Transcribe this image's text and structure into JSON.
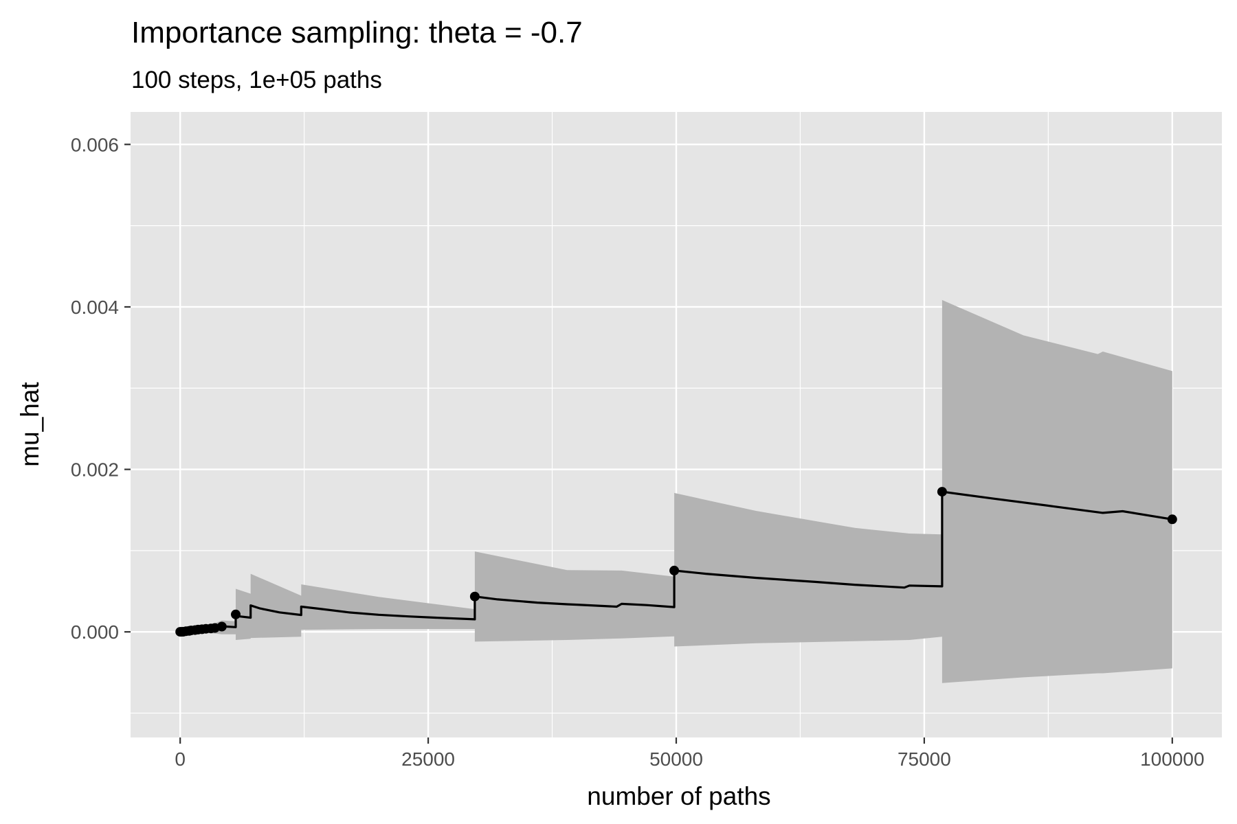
{
  "chart_data": {
    "type": "line",
    "title": "Importance sampling: theta =  -0.7",
    "subtitle": "100 steps, 1e+05 paths",
    "xlabel": "number of paths",
    "ylabel": "mu_hat",
    "xlim": [
      -5000,
      105000
    ],
    "ylim": [
      -0.0013,
      0.0064
    ],
    "x_ticks": [
      0,
      25000,
      50000,
      75000,
      100000
    ],
    "x_tick_labels": [
      "0",
      "25000",
      "50000",
      "75000",
      "100000"
    ],
    "y_ticks": [
      0,
      0.002,
      0.004,
      0.006
    ],
    "y_tick_labels": [
      "0.000",
      "0.002",
      "0.004",
      "0.006"
    ],
    "x_minor": [
      12500,
      37500,
      62500,
      87500
    ],
    "y_minor": [
      -0.001,
      0.001,
      0.003,
      0.005
    ],
    "grid": true,
    "band_color": "#b3b3b3",
    "line_color": "#000000",
    "panel_color": "#e5e5e5",
    "jumps": [
      0,
      600,
      1100,
      1800,
      2600,
      3500,
      4200,
      5600,
      7100,
      12200,
      29700,
      49800,
      76800
    ],
    "series": [
      {
        "x": [
          0,
          300,
          599,
          600,
          1099,
          1100,
          1799,
          1800,
          2599,
          2600,
          3499,
          3500,
          4199,
          4200,
          5599,
          5600,
          6000,
          7099,
          7100,
          8000,
          10000,
          12199,
          12200,
          14000,
          17000,
          20000,
          23000,
          26000,
          29699,
          29700,
          32000,
          36000,
          39000,
          40000,
          44000,
          44500,
          47000,
          49799,
          49800,
          53000,
          58000,
          64000,
          68000,
          73000,
          73500,
          76799,
          76800,
          82000,
          88000,
          93000,
          95000,
          100000
        ],
        "y": [
          1.5e-06,
          1.3e-06,
          1.2e-06,
          1.05e-05,
          9.5e-06,
          2.2e-05,
          2e-05,
          3.5e-05,
          3.1e-05,
          4.5e-05,
          4e-05,
          5.8e-05,
          5.2e-05,
          6.8e-05,
          5.8e-05,
          0.000212,
          0.00019,
          0.000175,
          0.000325,
          0.00029,
          0.00024,
          0.000208,
          0.00031,
          0.000285,
          0.00024,
          0.00021,
          0.00019,
          0.000173,
          0.000155,
          0.000435,
          0.0004,
          0.00036,
          0.00034,
          0.000335,
          0.00031,
          0.000345,
          0.00033,
          0.000305,
          0.000755,
          0.000715,
          0.000665,
          0.000615,
          0.00058,
          0.000545,
          0.00057,
          0.00056,
          0.001725,
          0.00164,
          0.001545,
          0.001465,
          0.001485,
          0.001385
        ]
      }
    ],
    "band": {
      "x": [
        0,
        600,
        1100,
        1800,
        2600,
        3500,
        4200,
        5599,
        5600,
        7099,
        7100,
        12199,
        12200,
        20000,
        29699,
        29700,
        39000,
        44500,
        49799,
        49800,
        58000,
        68000,
        73500,
        76799,
        76800,
        85000,
        92500,
        93000,
        100000
      ],
      "upper": [
        3e-06,
        2.5e-05,
        4.5e-05,
        6.5e-05,
        8.5e-05,
        0.000105,
        0.00014,
        0.00013,
        0.00053,
        0.00047,
        0.000715,
        0.000445,
        0.000585,
        0.00043,
        0.00028,
        0.00099,
        0.00076,
        0.000755,
        0.00068,
        0.00171,
        0.00149,
        0.00128,
        0.00121,
        0.0012,
        0.004085,
        0.00365,
        0.00342,
        0.00345,
        0.00321
      ],
      "lower": [
        0.0,
        -5e-06,
        -1e-05,
        -1e-05,
        -1.5e-05,
        -2e-05,
        -3e-05,
        -3e-05,
        -0.0001,
        -8.5e-05,
        -7.5e-05,
        -6e-05,
        2.5e-05,
        3.5e-05,
        3.5e-05,
        -0.00012,
        -0.0001,
        -8e-05,
        -5.5e-05,
        -0.00018,
        -0.00014,
        -0.000115,
        -0.0001,
        -6e-05,
        -0.00063,
        -0.00056,
        -0.00051,
        -0.00051,
        -0.00045
      ]
    },
    "markers": {
      "x": [
        0,
        150,
        300,
        600,
        900,
        1100,
        1500,
        1800,
        2200,
        2600,
        3100,
        3500,
        4200,
        5600,
        29700,
        49800,
        76800,
        100000
      ],
      "y": [
        1e-06,
        1e-06,
        2e-06,
        8e-06,
        1.2e-05,
        1.8e-05,
        2.2e-05,
        2.8e-05,
        3.2e-05,
        3.8e-05,
        4.2e-05,
        4.8e-05,
        6.5e-05,
        0.000215,
        0.000435,
        0.000755,
        0.001725,
        0.001385
      ]
    }
  }
}
